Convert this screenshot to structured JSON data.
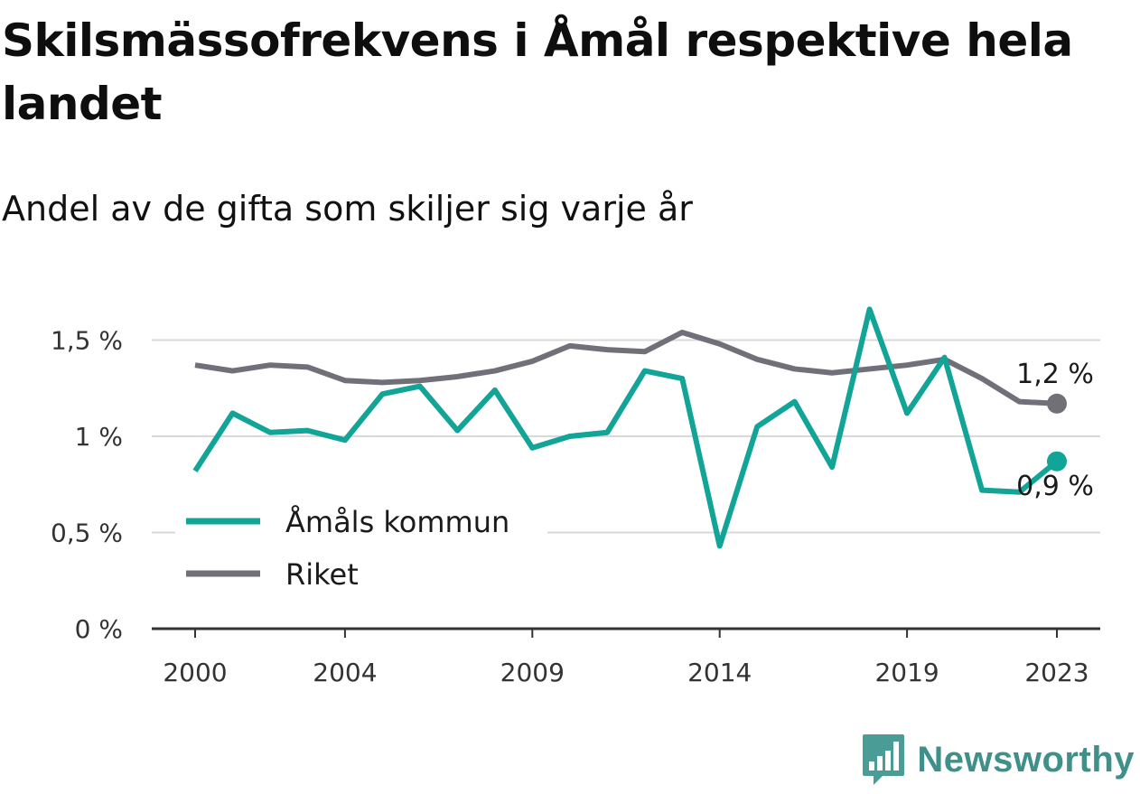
{
  "title": "Skilsmässofrekvens i Åmål respektive hela landet",
  "subtitle": "Andel av de gifta som skiljer sig varje år",
  "brand": "Newsworthy",
  "chart_data": {
    "type": "line",
    "title": "Skilsmässofrekvens i Åmål respektive hela landet",
    "subtitle": "Andel av de gifta som skiljer sig varje år",
    "x": [
      2000,
      2001,
      2002,
      2003,
      2004,
      2005,
      2006,
      2007,
      2008,
      2009,
      2010,
      2011,
      2012,
      2013,
      2014,
      2015,
      2016,
      2017,
      2018,
      2019,
      2020,
      2021,
      2022,
      2023
    ],
    "xticks": [
      2000,
      2004,
      2009,
      2014,
      2019,
      2023
    ],
    "ylim": [
      0,
      1.75
    ],
    "yticks": [
      {
        "value": 0,
        "label": "0 %"
      },
      {
        "value": 0.5,
        "label": "0,5 %"
      },
      {
        "value": 1,
        "label": "1 %"
      },
      {
        "value": 1.5,
        "label": "1,5 %"
      }
    ],
    "grid": true,
    "legend_position": "bottom-left",
    "series": [
      {
        "name": "Åmåls kommun",
        "color": "#12a497",
        "values": [
          0.82,
          1.12,
          1.02,
          1.03,
          0.98,
          1.22,
          1.26,
          1.03,
          1.24,
          0.94,
          1.0,
          1.02,
          1.34,
          1.3,
          0.43,
          1.05,
          1.18,
          0.84,
          1.66,
          1.12,
          1.41,
          0.72,
          0.71,
          0.87
        ],
        "end_label": "0,9 %"
      },
      {
        "name": "Riket",
        "color": "#717079",
        "values": [
          1.37,
          1.34,
          1.37,
          1.36,
          1.29,
          1.28,
          1.29,
          1.31,
          1.34,
          1.39,
          1.47,
          1.45,
          1.44,
          1.54,
          1.48,
          1.4,
          1.35,
          1.33,
          1.35,
          1.37,
          1.4,
          1.3,
          1.18,
          1.17
        ],
        "end_label": "1,2 %"
      }
    ]
  }
}
